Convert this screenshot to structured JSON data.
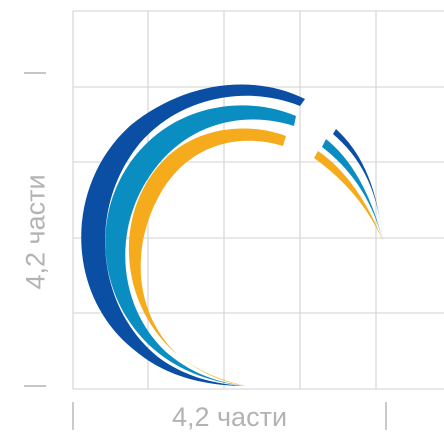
{
  "width_label": "4,2 части",
  "height_label": "4,2 части",
  "colors": {
    "grid": "#d9d9d9",
    "dimension": "#b3b3b3",
    "arc_outer": "#0a4fa3",
    "arc_middle": "#0a8ec2",
    "arc_inner": "#f5ab1b"
  }
}
